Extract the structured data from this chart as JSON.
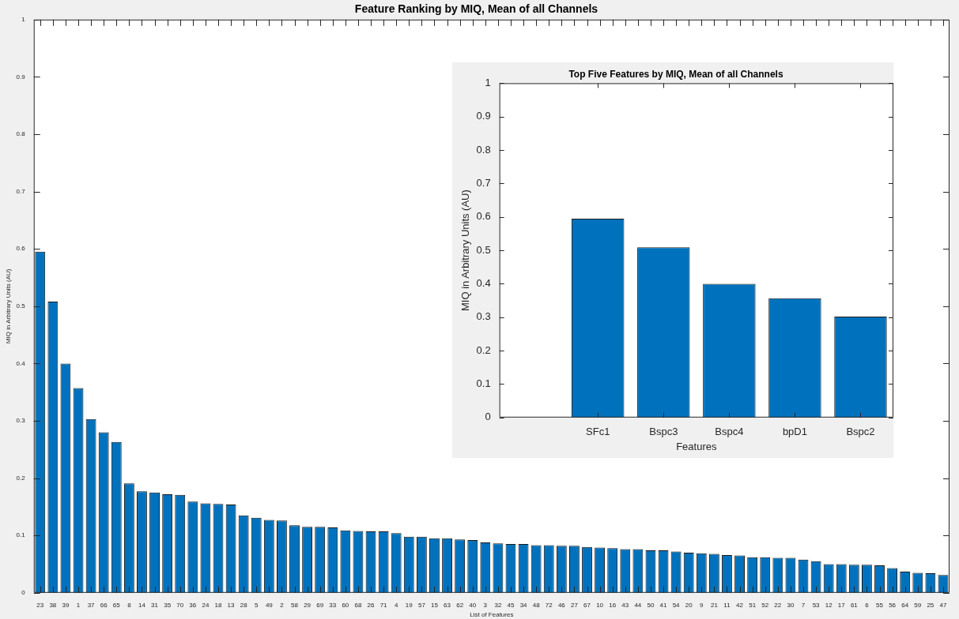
{
  "chart_data": [
    {
      "type": "bar",
      "title": "Feature Ranking by MIQ, Mean of all Channels",
      "xlabel": "List of Features",
      "ylabel": "MIQ in Arbitrary Units (AU)",
      "categories": [
        "23",
        "38",
        "39",
        "1",
        "37",
        "66",
        "65",
        "8",
        "14",
        "31",
        "35",
        "70",
        "36",
        "24",
        "18",
        "13",
        "28",
        "5",
        "49",
        "2",
        "58",
        "29",
        "69",
        "33",
        "60",
        "68",
        "26",
        "71",
        "4",
        "19",
        "57",
        "15",
        "63",
        "62",
        "40",
        "3",
        "32",
        "45",
        "34",
        "48",
        "72",
        "46",
        "27",
        "67",
        "10",
        "16",
        "43",
        "44",
        "50",
        "41",
        "54",
        "20",
        "9",
        "21",
        "11",
        "42",
        "51",
        "52",
        "22",
        "30",
        "7",
        "53",
        "12",
        "17",
        "61",
        "6",
        "55",
        "56",
        "64",
        "59",
        "25",
        "47"
      ],
      "values": [
        0.595,
        0.508,
        0.4,
        0.357,
        0.303,
        0.28,
        0.263,
        0.191,
        0.177,
        0.175,
        0.172,
        0.171,
        0.159,
        0.156,
        0.155,
        0.154,
        0.135,
        0.131,
        0.127,
        0.126,
        0.118,
        0.115,
        0.115,
        0.114,
        0.109,
        0.108,
        0.107,
        0.107,
        0.104,
        0.098,
        0.098,
        0.095,
        0.095,
        0.093,
        0.092,
        0.088,
        0.086,
        0.085,
        0.085,
        0.083,
        0.083,
        0.082,
        0.082,
        0.08,
        0.079,
        0.078,
        0.076,
        0.076,
        0.074,
        0.074,
        0.072,
        0.07,
        0.069,
        0.068,
        0.066,
        0.065,
        0.062,
        0.062,
        0.061,
        0.061,
        0.058,
        0.055,
        0.05,
        0.05,
        0.049,
        0.049,
        0.048,
        0.043,
        0.037,
        0.035,
        0.034,
        0.031
      ],
      "color": "#0072bd",
      "ylim": [
        0,
        1
      ],
      "yticks": [
        0,
        0.1,
        0.2,
        0.3,
        0.4,
        0.5,
        0.6,
        0.7,
        0.8,
        0.9,
        1
      ]
    },
    {
      "type": "bar",
      "title": "Top Five Features by MIQ, Mean of all Channels",
      "xlabel": "Features",
      "ylabel": "MIQ in Arbitrary Units (AU)",
      "categories": [
        null,
        "SFc1",
        "Bspc3",
        "Bspc4",
        "bpD1",
        "Bspc2"
      ],
      "values": [
        null,
        0.595,
        0.509,
        0.4,
        0.357,
        0.302
      ],
      "color": "#0072bd",
      "ylim": [
        0,
        1
      ],
      "yticks": [
        0,
        0.1,
        0.2,
        0.3,
        0.4,
        0.5,
        0.6,
        0.7,
        0.8,
        0.9,
        1
      ]
    }
  ]
}
